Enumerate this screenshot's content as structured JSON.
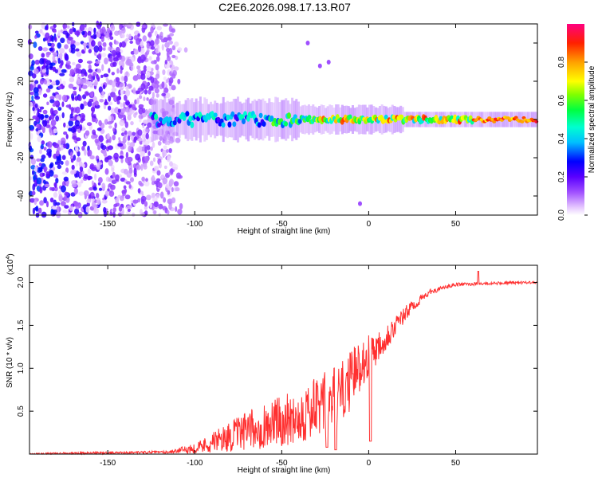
{
  "title": "C2E6.2026.098.17.13.R07",
  "chart_data": [
    {
      "type": "heatmap",
      "name": "spectrogram",
      "xlabel": "Height of straight line (km)",
      "ylabel": "Frequency (Hz)",
      "xlim": [
        -195,
        97
      ],
      "ylim": [
        -50,
        50
      ],
      "xticks": [
        -150,
        -100,
        -50,
        0,
        50
      ],
      "yticks": [
        -40,
        -20,
        0,
        20,
        40
      ],
      "colorbar": {
        "label": "Normalized spectral amplitude",
        "range": [
          0,
          1
        ],
        "ticks": [
          0.0,
          0.2,
          0.4,
          0.6,
          0.8
        ]
      },
      "features": {
        "noise_region_x": [
          -195,
          -112
        ],
        "band_center_hz": 0,
        "band_start_x": -125,
        "peak_amplitude_x_range": [
          -30,
          95
        ],
        "isolated_points": [
          {
            "x": -28,
            "y": 28
          },
          {
            "x": -23,
            "y": 30
          },
          {
            "x": -35,
            "y": 40
          },
          {
            "x": -5,
            "y": -44
          }
        ]
      }
    },
    {
      "type": "line",
      "name": "snr",
      "xlabel": "Height of straight line (km)",
      "ylabel": "SNR (10 * v/v)",
      "y_scale_note": "(x10",
      "y_scale_exponent": "4",
      "xlim": [
        -195,
        97
      ],
      "ylim": [
        0,
        2.2
      ],
      "xticks": [
        -150,
        -100,
        -50,
        0,
        50
      ],
      "yticks": [
        0.5,
        1.0,
        1.5,
        2.0
      ],
      "color": "#ff3030",
      "envelope": [
        {
          "x": -195,
          "base": 0.0,
          "amp": 0.02
        },
        {
          "x": -115,
          "base": 0.02,
          "amp": 0.03
        },
        {
          "x": -100,
          "base": 0.05,
          "amp": 0.12
        },
        {
          "x": -80,
          "base": 0.15,
          "amp": 0.35
        },
        {
          "x": -60,
          "base": 0.25,
          "amp": 0.55
        },
        {
          "x": -40,
          "base": 0.35,
          "amp": 0.65
        },
        {
          "x": -25,
          "base": 0.45,
          "amp": 0.8
        },
        {
          "x": -15,
          "base": 0.6,
          "amp": 0.75
        },
        {
          "x": -5,
          "base": 0.95,
          "amp": 0.6
        },
        {
          "x": 5,
          "base": 1.2,
          "amp": 0.4
        },
        {
          "x": 15,
          "base": 1.45,
          "amp": 0.25
        },
        {
          "x": 25,
          "base": 1.7,
          "amp": 0.15
        },
        {
          "x": 35,
          "base": 1.88,
          "amp": 0.06
        },
        {
          "x": 50,
          "base": 1.97,
          "amp": 0.04
        },
        {
          "x": 97,
          "base": 2.0,
          "amp": 0.03
        }
      ],
      "dips": [
        {
          "x": 1,
          "y": 0.15
        },
        {
          "x": -19,
          "y": 0.05
        },
        {
          "x": -24,
          "y": 0.08
        }
      ],
      "max_point": {
        "x": 63,
        "y": 2.13
      }
    }
  ]
}
